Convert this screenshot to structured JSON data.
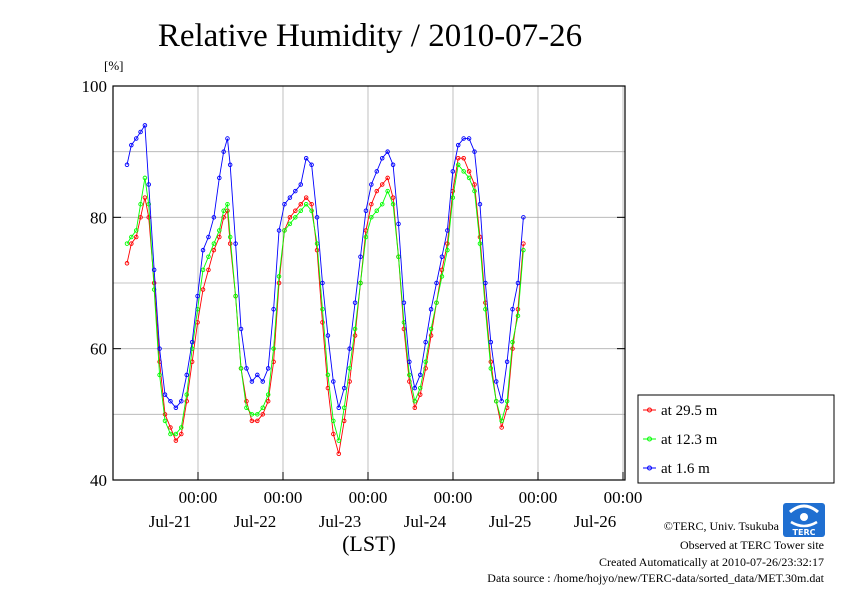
{
  "chart_data": {
    "type": "line",
    "title": "Relative Humidity / 2010-07-26",
    "ylabel": "[%]",
    "xlabel": "(LST)",
    "ylim": [
      40,
      100
    ],
    "y_ticks": [
      40,
      60,
      80,
      100
    ],
    "x_range_days": [
      "Jul-20 12:00",
      "Jul-26 12:00"
    ],
    "x_ticks": [
      {
        "time": "00:00",
        "date": "Jul-21"
      },
      {
        "time": "00:00",
        "date": "Jul-22"
      },
      {
        "time": "00:00",
        "date": "Jul-23"
      },
      {
        "time": "00:00",
        "date": "Jul-24"
      },
      {
        "time": "00:00",
        "date": "Jul-25"
      },
      {
        "time": "00:00",
        "date": "Jul-26"
      }
    ],
    "grid": true,
    "legend_position": "bottom-right outside",
    "series": [
      {
        "name": "at 29.5 m",
        "color": "#ff0000",
        "points": [
          [
            0.0,
            73
          ],
          [
            0.08,
            76
          ],
          [
            0.17,
            77
          ],
          [
            0.25,
            80
          ],
          [
            0.33,
            83
          ],
          [
            0.4,
            80
          ],
          [
            0.5,
            70
          ],
          [
            0.6,
            58
          ],
          [
            0.7,
            50
          ],
          [
            0.8,
            48
          ],
          [
            0.9,
            46
          ],
          [
            1.0,
            47
          ],
          [
            1.1,
            52
          ],
          [
            1.2,
            58
          ],
          [
            1.3,
            64
          ],
          [
            1.4,
            69
          ],
          [
            1.5,
            72
          ],
          [
            1.6,
            75
          ],
          [
            1.7,
            77
          ],
          [
            1.78,
            80
          ],
          [
            1.85,
            81
          ],
          [
            1.9,
            76
          ],
          [
            2.0,
            68
          ],
          [
            2.1,
            57
          ],
          [
            2.2,
            52
          ],
          [
            2.3,
            49
          ],
          [
            2.4,
            49
          ],
          [
            2.5,
            50
          ],
          [
            2.6,
            52
          ],
          [
            2.7,
            58
          ],
          [
            2.8,
            70
          ],
          [
            2.9,
            78
          ],
          [
            3.0,
            80
          ],
          [
            3.1,
            81
          ],
          [
            3.2,
            82
          ],
          [
            3.3,
            83
          ],
          [
            3.4,
            82
          ],
          [
            3.5,
            75
          ],
          [
            3.6,
            64
          ],
          [
            3.7,
            54
          ],
          [
            3.8,
            47
          ],
          [
            3.9,
            44
          ],
          [
            4.0,
            49
          ],
          [
            4.1,
            55
          ],
          [
            4.2,
            62
          ],
          [
            4.3,
            70
          ],
          [
            4.4,
            78
          ],
          [
            4.5,
            82
          ],
          [
            4.6,
            84
          ],
          [
            4.7,
            85
          ],
          [
            4.8,
            86
          ],
          [
            4.9,
            83
          ],
          [
            5.0,
            74
          ],
          [
            5.1,
            63
          ],
          [
            5.2,
            55
          ],
          [
            5.3,
            51
          ],
          [
            5.4,
            53
          ],
          [
            5.5,
            57
          ],
          [
            5.6,
            62
          ],
          [
            5.7,
            67
          ],
          [
            5.8,
            72
          ],
          [
            5.9,
            76
          ],
          [
            6.0,
            84
          ],
          [
            6.1,
            89
          ],
          [
            6.2,
            89
          ],
          [
            6.3,
            87
          ],
          [
            6.4,
            85
          ],
          [
            6.5,
            77
          ],
          [
            6.6,
            67
          ],
          [
            6.7,
            58
          ],
          [
            6.8,
            52
          ],
          [
            6.9,
            48
          ],
          [
            7.0,
            51
          ],
          [
            7.1,
            60
          ],
          [
            7.2,
            66
          ],
          [
            7.3,
            76
          ]
        ]
      },
      {
        "name": "at 12.3 m",
        "color": "#00ff00",
        "points": [
          [
            0.0,
            76
          ],
          [
            0.08,
            77
          ],
          [
            0.17,
            78
          ],
          [
            0.25,
            82
          ],
          [
            0.33,
            86
          ],
          [
            0.4,
            82
          ],
          [
            0.5,
            69
          ],
          [
            0.6,
            56
          ],
          [
            0.7,
            49
          ],
          [
            0.8,
            47
          ],
          [
            0.9,
            47
          ],
          [
            1.0,
            48
          ],
          [
            1.1,
            53
          ],
          [
            1.2,
            60
          ],
          [
            1.3,
            66
          ],
          [
            1.4,
            72
          ],
          [
            1.5,
            74
          ],
          [
            1.6,
            76
          ],
          [
            1.7,
            78
          ],
          [
            1.78,
            81
          ],
          [
            1.85,
            82
          ],
          [
            1.9,
            77
          ],
          [
            2.0,
            68
          ],
          [
            2.1,
            57
          ],
          [
            2.2,
            51
          ],
          [
            2.3,
            50
          ],
          [
            2.4,
            50
          ],
          [
            2.5,
            51
          ],
          [
            2.6,
            53
          ],
          [
            2.7,
            60
          ],
          [
            2.8,
            71
          ],
          [
            2.9,
            78
          ],
          [
            3.0,
            79
          ],
          [
            3.1,
            80
          ],
          [
            3.2,
            81
          ],
          [
            3.3,
            82
          ],
          [
            3.4,
            81
          ],
          [
            3.5,
            76
          ],
          [
            3.6,
            66
          ],
          [
            3.7,
            56
          ],
          [
            3.8,
            49
          ],
          [
            3.9,
            46
          ],
          [
            4.0,
            51
          ],
          [
            4.1,
            57
          ],
          [
            4.2,
            63
          ],
          [
            4.3,
            70
          ],
          [
            4.4,
            77
          ],
          [
            4.5,
            80
          ],
          [
            4.6,
            81
          ],
          [
            4.7,
            82
          ],
          [
            4.8,
            84
          ],
          [
            4.9,
            82
          ],
          [
            5.0,
            74
          ],
          [
            5.1,
            64
          ],
          [
            5.2,
            56
          ],
          [
            5.3,
            52
          ],
          [
            5.4,
            54
          ],
          [
            5.5,
            58
          ],
          [
            5.6,
            63
          ],
          [
            5.7,
            67
          ],
          [
            5.8,
            71
          ],
          [
            5.9,
            75
          ],
          [
            6.0,
            83
          ],
          [
            6.1,
            88
          ],
          [
            6.2,
            87
          ],
          [
            6.3,
            86
          ],
          [
            6.4,
            84
          ],
          [
            6.5,
            76
          ],
          [
            6.6,
            66
          ],
          [
            6.7,
            57
          ],
          [
            6.8,
            52
          ],
          [
            6.9,
            49
          ],
          [
            7.0,
            52
          ],
          [
            7.1,
            61
          ],
          [
            7.2,
            65
          ],
          [
            7.3,
            75
          ]
        ]
      },
      {
        "name": "at 1.6 m",
        "color": "#0000ff",
        "points": [
          [
            0.0,
            88
          ],
          [
            0.08,
            91
          ],
          [
            0.17,
            92
          ],
          [
            0.25,
            93
          ],
          [
            0.33,
            94
          ],
          [
            0.4,
            85
          ],
          [
            0.5,
            72
          ],
          [
            0.6,
            60
          ],
          [
            0.7,
            53
          ],
          [
            0.8,
            52
          ],
          [
            0.9,
            51
          ],
          [
            1.0,
            52
          ],
          [
            1.1,
            56
          ],
          [
            1.2,
            61
          ],
          [
            1.3,
            68
          ],
          [
            1.4,
            75
          ],
          [
            1.5,
            77
          ],
          [
            1.6,
            80
          ],
          [
            1.7,
            86
          ],
          [
            1.78,
            90
          ],
          [
            1.85,
            92
          ],
          [
            1.9,
            88
          ],
          [
            2.0,
            76
          ],
          [
            2.1,
            63
          ],
          [
            2.2,
            57
          ],
          [
            2.3,
            55
          ],
          [
            2.4,
            56
          ],
          [
            2.5,
            55
          ],
          [
            2.6,
            57
          ],
          [
            2.7,
            66
          ],
          [
            2.8,
            78
          ],
          [
            2.9,
            82
          ],
          [
            3.0,
            83
          ],
          [
            3.1,
            84
          ],
          [
            3.2,
            85
          ],
          [
            3.3,
            89
          ],
          [
            3.4,
            88
          ],
          [
            3.5,
            80
          ],
          [
            3.6,
            70
          ],
          [
            3.7,
            62
          ],
          [
            3.8,
            55
          ],
          [
            3.9,
            51
          ],
          [
            4.0,
            54
          ],
          [
            4.1,
            60
          ],
          [
            4.2,
            67
          ],
          [
            4.3,
            74
          ],
          [
            4.4,
            81
          ],
          [
            4.5,
            85
          ],
          [
            4.6,
            87
          ],
          [
            4.7,
            89
          ],
          [
            4.8,
            90
          ],
          [
            4.9,
            88
          ],
          [
            5.0,
            79
          ],
          [
            5.1,
            67
          ],
          [
            5.2,
            58
          ],
          [
            5.3,
            54
          ],
          [
            5.4,
            56
          ],
          [
            5.5,
            61
          ],
          [
            5.6,
            66
          ],
          [
            5.7,
            70
          ],
          [
            5.8,
            74
          ],
          [
            5.9,
            78
          ],
          [
            6.0,
            87
          ],
          [
            6.1,
            91
          ],
          [
            6.2,
            92
          ],
          [
            6.3,
            92
          ],
          [
            6.4,
            90
          ],
          [
            6.5,
            82
          ],
          [
            6.6,
            70
          ],
          [
            6.7,
            61
          ],
          [
            6.8,
            55
          ],
          [
            6.9,
            52
          ],
          [
            7.0,
            58
          ],
          [
            7.1,
            66
          ],
          [
            7.2,
            70
          ],
          [
            7.3,
            80
          ]
        ]
      }
    ]
  },
  "credits": {
    "org": "©TERC, Univ. Tsukuba",
    "observed": "Observed at TERC Tower site",
    "created": "Created Automatically at 2010-07-26/23:32:17",
    "source": "Data source : /home/hojyo/new/TERC-data/sorted_data/MET.30m.dat"
  },
  "logo": {
    "text": "TERC",
    "color": "#1f6fd1"
  }
}
